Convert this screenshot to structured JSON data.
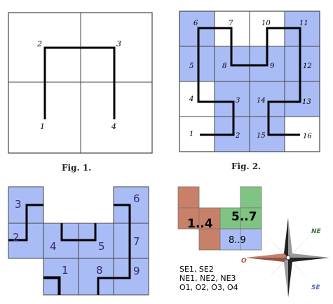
{
  "figures": {
    "fig1": {
      "caption": "Fig. 1.",
      "points": [
        "1",
        "2",
        "3",
        "4"
      ]
    },
    "fig2": {
      "caption": "Fig. 2.",
      "points": [
        "1",
        "2",
        "3",
        "4",
        "5",
        "6",
        "7",
        "8",
        "9",
        "10",
        "11",
        "12",
        "13",
        "14",
        "15",
        "16"
      ]
    },
    "fig3": {
      "labels": [
        "1",
        "2",
        "3",
        "4",
        "5",
        "6",
        "7",
        "8",
        "9"
      ]
    },
    "fig4": {
      "block_labels": [
        "1..4",
        "5..7",
        "8..9"
      ]
    }
  },
  "compass": {
    "ne": "NE",
    "se": "SE",
    "o": "O"
  },
  "legend": {
    "line1": "SE1, SE2",
    "line2": "NE1, NE2, NE3",
    "line3": "O1, O2, O3, O4"
  },
  "colors": {
    "blue_cell": "#aabcf5",
    "red_block": "#c98068",
    "green_block": "#7fc483",
    "grid_line": "#444444",
    "path": "#000000",
    "label_text": "#3a2a78"
  }
}
